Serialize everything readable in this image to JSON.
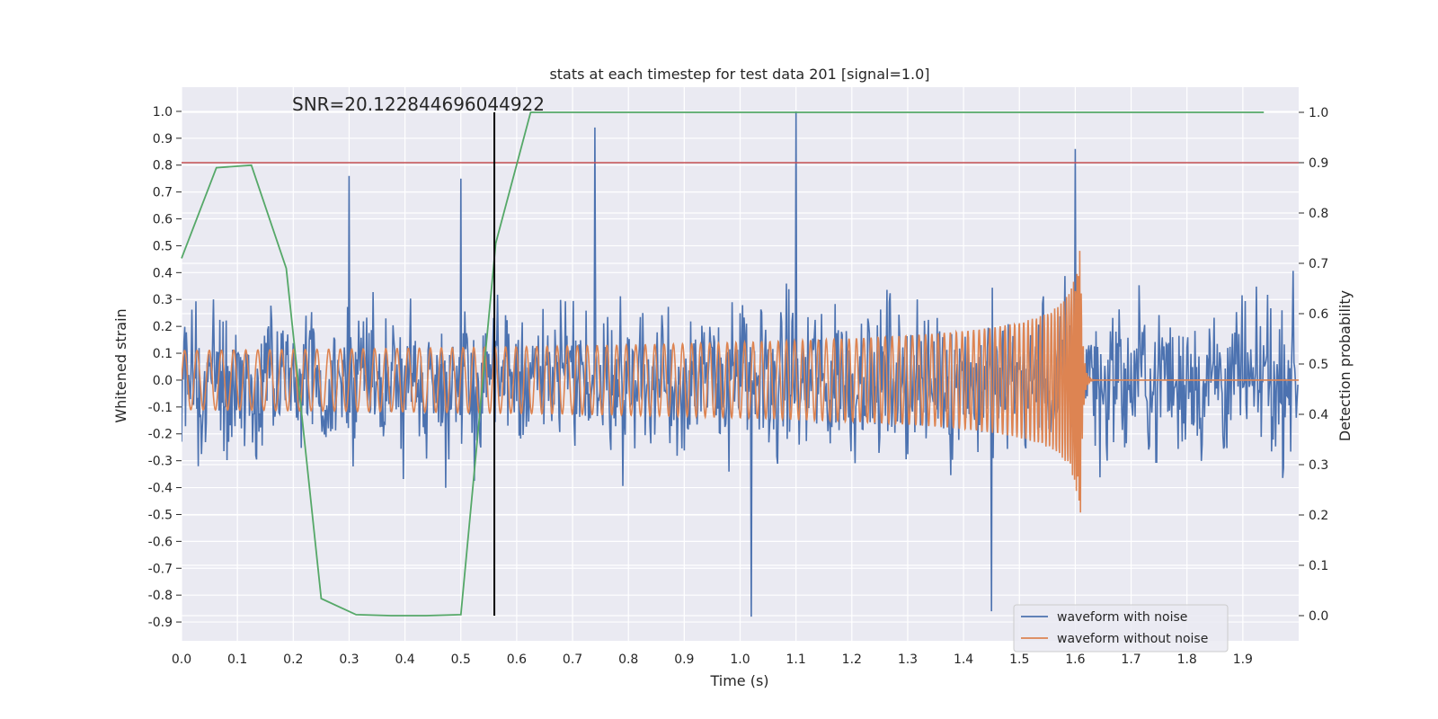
{
  "chart_data": {
    "type": "line",
    "title": "stats at each timestep for test data 201 [signal=1.0]",
    "xlabel": "Time (s)",
    "ylabel": "Whitened strain",
    "y2label": "Detection probability",
    "annotation": "SNR=20.122844696044922",
    "xlim": [
      0.0,
      2.0
    ],
    "ylim": [
      -0.97,
      1.09
    ],
    "y2lim": [
      -0.05,
      1.05
    ],
    "xticks": [
      "0.0",
      "0.1",
      "0.2",
      "0.3",
      "0.4",
      "0.5",
      "0.6",
      "0.7",
      "0.8",
      "0.9",
      "1.0",
      "1.1",
      "1.2",
      "1.3",
      "1.4",
      "1.5",
      "1.6",
      "1.7",
      "1.8",
      "1.9"
    ],
    "yticks": [
      "1.0",
      "0.9",
      "0.8",
      "0.7",
      "0.6",
      "0.5",
      "0.4",
      "0.3",
      "0.2",
      "0.1",
      "0.0",
      "-0.1",
      "-0.2",
      "-0.3",
      "-0.4",
      "-0.5",
      "-0.6",
      "-0.7",
      "-0.8",
      "-0.9"
    ],
    "y2ticks": [
      "1.0",
      "0.9",
      "0.8",
      "0.7",
      "0.6",
      "0.5",
      "0.4",
      "0.3",
      "0.2",
      "0.1",
      "0.0"
    ],
    "threshold": 0.9,
    "marker_time": 0.56,
    "noisy_waveform": {
      "name": "waveform with noise",
      "color": "#4c72b0",
      "amplitude_typical": 0.35,
      "spike_peaks": [
        [
          0.3,
          0.76
        ],
        [
          0.5,
          0.75
        ],
        [
          0.74,
          0.94
        ],
        [
          1.1,
          1.0
        ],
        [
          1.6,
          0.86
        ],
        [
          1.02,
          -0.88
        ],
        [
          1.45,
          -0.86
        ]
      ]
    },
    "clean_waveform": {
      "name": "waveform without noise",
      "color": "#dd8452",
      "merger_time": 1.61,
      "merger_peak": 0.51
    },
    "detection_probability": {
      "name": "Detection probability",
      "color": "#55a868",
      "x": [
        0.0,
        0.0625,
        0.125,
        0.1875,
        0.25,
        0.3125,
        0.375,
        0.4375,
        0.5,
        0.5625,
        0.625,
        0.6875,
        0.75,
        0.8125,
        0.875,
        0.9375,
        1.0,
        1.0625,
        1.125,
        1.1875,
        1.25,
        1.3125,
        1.375,
        1.4375,
        1.5,
        1.5625,
        1.625,
        1.6875,
        1.75,
        1.8125,
        1.875,
        1.9375
      ],
      "values": [
        0.71,
        0.89,
        0.895,
        0.69,
        0.034,
        0.002,
        0.0,
        0.0,
        0.002,
        0.74,
        1.0,
        1.0,
        1.0,
        1.0,
        1.0,
        1.0,
        1.0,
        1.0,
        1.0,
        1.0,
        1.0,
        1.0,
        1.0,
        1.0,
        1.0,
        1.0,
        1.0,
        1.0,
        1.0,
        1.0,
        1.0,
        1.0
      ]
    },
    "legend": [
      "waveform with noise",
      "waveform without noise"
    ],
    "legend_position": "bottom-right",
    "colors": {
      "threshold": "#c44e52",
      "marker": "#000000",
      "plot_bg": "#eaeaf2",
      "grid": "#ffffff"
    }
  }
}
